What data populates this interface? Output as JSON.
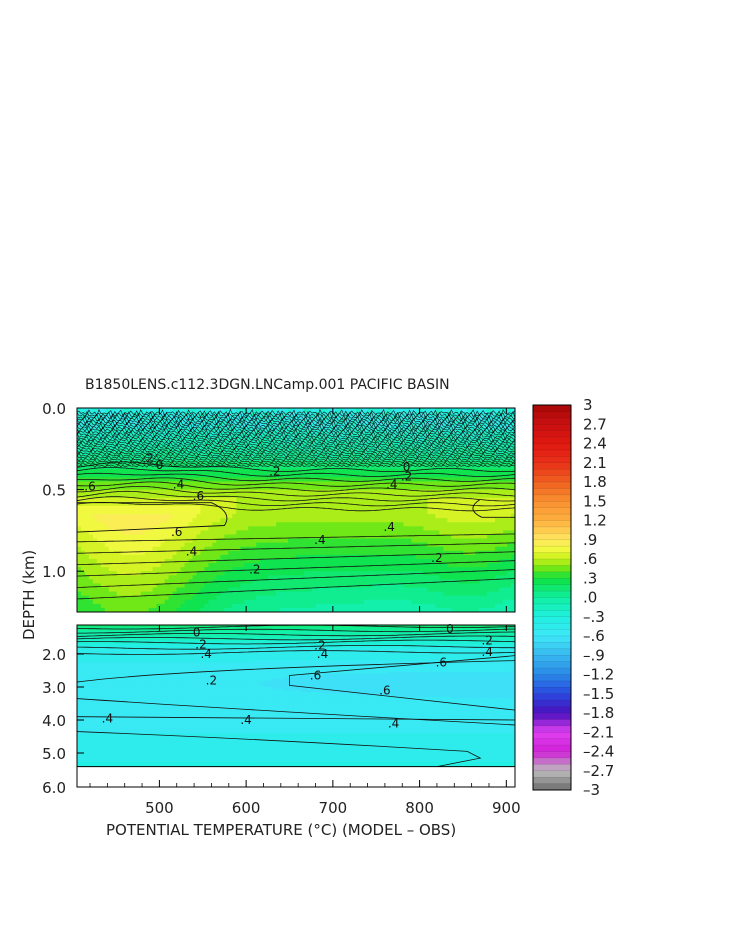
{
  "chart_data": {
    "type": "heatmap",
    "title": "B1850LENS.c112.3DGN.LNCamp.001 PACIFIC BASIN",
    "xlabel": "POTENTIAL TEMPERATURE (°C) (MODEL – OBS)",
    "ylabel": "DEPTH (km)",
    "xlim": [
      405,
      910
    ],
    "x_ticks": [
      500,
      600,
      700,
      800,
      900
    ],
    "upper_panel": {
      "ylim": [
        0.0,
        1.25
      ],
      "y_ticks": [
        "0.0",
        "0.5",
        "1.0"
      ],
      "y_tick_values": [
        0.0,
        0.5,
        1.0
      ]
    },
    "lower_panel": {
      "ylim": [
        1.25,
        6.0
      ],
      "y_ticks": [
        "2.0",
        "3.0",
        "4.0",
        "5.0",
        "6.0"
      ],
      "y_tick_values": [
        2.0,
        3.0,
        4.0,
        5.0,
        6.0
      ],
      "data_max_depth": 5.4
    },
    "colorbar": {
      "labels": [
        "3",
        "2.7",
        "2.4",
        "2.1",
        "1.8",
        "1.5",
        "1.2",
        ".9",
        ".6",
        ".3",
        ".0",
        "–.3",
        "–.6",
        "–.9",
        "–1.2",
        "–1.5",
        "–1.8",
        "–2.1",
        "–2.4",
        "–2.7",
        "–3"
      ],
      "levels": [
        3,
        2.7,
        2.4,
        2.1,
        1.8,
        1.5,
        1.2,
        0.9,
        0.6,
        0.3,
        0.0,
        -0.3,
        -0.6,
        -0.9,
        -1.2,
        -1.5,
        -1.8,
        -2.1,
        -2.4,
        -2.7,
        -3
      ]
    },
    "contour_labels": {
      "upper": [
        {
          "text": ".6",
          "x": 420,
          "y": 0.48
        },
        {
          "text": ".6",
          "x": 545,
          "y": 0.54
        },
        {
          "text": ".6",
          "x": 520,
          "y": 0.76
        },
        {
          "text": ".4",
          "x": 522,
          "y": 0.47
        },
        {
          "text": ".4",
          "x": 537,
          "y": 0.88
        },
        {
          "text": ".4",
          "x": 765,
          "y": 0.73
        },
        {
          "text": ".4",
          "x": 768,
          "y": 0.47
        },
        {
          "text": ".4",
          "x": 685,
          "y": 0.81
        },
        {
          "text": ".2",
          "x": 785,
          "y": 0.42
        },
        {
          "text": ".2",
          "x": 487,
          "y": 0.31
        },
        {
          "text": ".2",
          "x": 633,
          "y": 0.39
        },
        {
          "text": ".2",
          "x": 820,
          "y": 0.92
        },
        {
          "text": ".2",
          "x": 610,
          "y": 0.99
        },
        {
          "text": "0",
          "x": 500,
          "y": 0.35
        },
        {
          "text": "0",
          "x": 785,
          "y": 0.36
        }
      ],
      "lower": [
        {
          "text": "0",
          "x": 543,
          "y": 1.45
        },
        {
          "text": ".2",
          "x": 548,
          "y": 1.75
        },
        {
          "text": ".4",
          "x": 554,
          "y": 2.0
        },
        {
          "text": ".2",
          "x": 685,
          "y": 1.78
        },
        {
          "text": ".4",
          "x": 688,
          "y": 2.0
        },
        {
          "text": ".6",
          "x": 680,
          "y": 2.65
        },
        {
          "text": ".6",
          "x": 760,
          "y": 3.1
        },
        {
          "text": ".4",
          "x": 440,
          "y": 3.95
        },
        {
          "text": ".4",
          "x": 600,
          "y": 4.0
        },
        {
          "text": ".4",
          "x": 770,
          "y": 4.1
        },
        {
          "text": "0",
          "x": 835,
          "y": 1.35
        },
        {
          "text": ".2",
          "x": 878,
          "y": 1.65
        },
        {
          "text": ".4",
          "x": 878,
          "y": 1.95
        },
        {
          "text": ".6",
          "x": 825,
          "y": 2.25
        },
        {
          "text": ".2",
          "x": 560,
          "y": 2.8
        }
      ]
    },
    "fields": {
      "upper": "mid-depth warm bias ~0.6–0.9 near 400–580 (0.55–0.85 km), ~0.4–0.6 elsewhere, weakening to ~0.2 near 1.2 km; near-surface noisy values around 0",
      "lower": "cold bias ~ -0.4 to -0.6 at 2–4.5 km, deepest minimum near 3 km",
      "description_only": true
    }
  }
}
